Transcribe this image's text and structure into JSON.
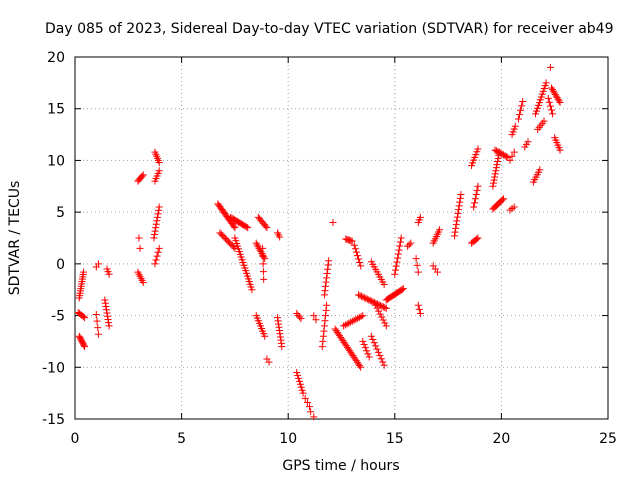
{
  "chart_data": {
    "type": "scatter",
    "title": "Day 085 of 2023, Sidereal Day-to-day VTEC variation (SDTVAR) for receiver ab49",
    "xlabel": "GPS time / hours",
    "ylabel": "SDTVAR / TECUs",
    "xlim": [
      0,
      25
    ],
    "ylim": [
      -15,
      20
    ],
    "xticks": [
      0,
      5,
      10,
      15,
      20,
      25
    ],
    "yticks": [
      -15,
      -10,
      -5,
      0,
      5,
      10,
      15,
      20
    ],
    "grid": true,
    "marker": "+",
    "color": "#ff0000",
    "segments": [
      {
        "x": [
          0.2,
          0.4
        ],
        "y": [
          -3.3,
          -0.8
        ],
        "n": 12
      },
      {
        "x": [
          0.15,
          0.45
        ],
        "y": [
          -4.7,
          -5.2
        ],
        "n": 6
      },
      {
        "x": [
          0.2,
          0.45
        ],
        "y": [
          -7.0,
          -8.0
        ],
        "n": 9
      },
      {
        "x": [
          1.0,
          1.1
        ],
        "y": [
          -0.3,
          0.0
        ],
        "n": 2
      },
      {
        "x": [
          1.0,
          1.1
        ],
        "y": [
          -4.9,
          -6.8
        ],
        "n": 4
      },
      {
        "x": [
          1.5,
          1.6
        ],
        "y": [
          -0.5,
          -1.0
        ],
        "n": 3
      },
      {
        "x": [
          1.4,
          1.6
        ],
        "y": [
          -3.5,
          -6.0
        ],
        "n": 9
      },
      {
        "x": [
          2.95,
          3.2
        ],
        "y": [
          8.0,
          8.6
        ],
        "n": 6
      },
      {
        "x": [
          3.0,
          3.05
        ],
        "y": [
          2.5,
          1.5
        ],
        "n": 2
      },
      {
        "x": [
          2.95,
          3.2
        ],
        "y": [
          -0.8,
          -1.8
        ],
        "n": 6
      },
      {
        "x": [
          3.75,
          3.95
        ],
        "y": [
          10.8,
          9.8
        ],
        "n": 6
      },
      {
        "x": [
          3.75,
          3.95
        ],
        "y": [
          8.0,
          9.0
        ],
        "n": 5
      },
      {
        "x": [
          3.7,
          3.95
        ],
        "y": [
          2.5,
          5.5
        ],
        "n": 10
      },
      {
        "x": [
          3.75,
          3.95
        ],
        "y": [
          0.0,
          1.5
        ],
        "n": 5
      },
      {
        "x": [
          6.7,
          7.5
        ],
        "y": [
          5.8,
          3.5
        ],
        "n": 18
      },
      {
        "x": [
          6.8,
          7.5
        ],
        "y": [
          3.0,
          1.5
        ],
        "n": 12
      },
      {
        "x": [
          7.3,
          8.1
        ],
        "y": [
          4.5,
          3.5
        ],
        "n": 14
      },
      {
        "x": [
          7.5,
          8.3
        ],
        "y": [
          2.5,
          -2.5
        ],
        "n": 20
      },
      {
        "x": [
          8.6,
          9.0
        ],
        "y": [
          4.5,
          3.5
        ],
        "n": 8
      },
      {
        "x": [
          8.5,
          8.9
        ],
        "y": [
          2.0,
          0.5
        ],
        "n": 10
      },
      {
        "x": [
          8.8,
          8.85
        ],
        "y": [
          1.5,
          -1.5
        ],
        "n": 5
      },
      {
        "x": [
          8.5,
          8.9
        ],
        "y": [
          -5.0,
          -7.0
        ],
        "n": 9
      },
      {
        "x": [
          9.0,
          9.1
        ],
        "y": [
          -9.2,
          -9.5
        ],
        "n": 2
      },
      {
        "x": [
          9.5,
          9.6
        ],
        "y": [
          3.0,
          2.6
        ],
        "n": 3
      },
      {
        "x": [
          9.5,
          9.7
        ],
        "y": [
          -5.2,
          -8.0
        ],
        "n": 10
      },
      {
        "x": [
          10.4,
          10.6
        ],
        "y": [
          -4.8,
          -5.3
        ],
        "n": 4
      },
      {
        "x": [
          10.4,
          10.7
        ],
        "y": [
          -10.5,
          -12.5
        ],
        "n": 8
      },
      {
        "x": [
          10.8,
          11.0
        ],
        "y": [
          -13.0,
          -13.8
        ],
        "n": 3
      },
      {
        "x": [
          11.05,
          11.2
        ],
        "y": [
          -14.3,
          -14.8
        ],
        "n": 2
      },
      {
        "x": [
          11.2,
          11.3
        ],
        "y": [
          -5.0,
          -5.4
        ],
        "n": 2
      },
      {
        "x": [
          11.6,
          11.8
        ],
        "y": [
          -8.0,
          -4.0
        ],
        "n": 9
      },
      {
        "x": [
          11.7,
          11.9
        ],
        "y": [
          -3.0,
          0.3
        ],
        "n": 9
      },
      {
        "x": [
          12.1,
          12.2
        ],
        "y": [
          4.0,
          4.0
        ],
        "n": 1
      },
      {
        "x": [
          12.2,
          13.4
        ],
        "y": [
          -6.3,
          -10.0
        ],
        "n": 24
      },
      {
        "x": [
          12.6,
          13.5
        ],
        "y": [
          -6.0,
          -5.0
        ],
        "n": 12
      },
      {
        "x": [
          12.7,
          13.0
        ],
        "y": [
          2.4,
          2.2
        ],
        "n": 6
      },
      {
        "x": [
          13.1,
          13.4
        ],
        "y": [
          1.8,
          -0.2
        ],
        "n": 7
      },
      {
        "x": [
          13.3,
          14.6
        ],
        "y": [
          -3.0,
          -4.3
        ],
        "n": 20
      },
      {
        "x": [
          13.5,
          13.8
        ],
        "y": [
          -7.5,
          -9.0
        ],
        "n": 6
      },
      {
        "x": [
          13.9,
          14.5
        ],
        "y": [
          0.2,
          -2.0
        ],
        "n": 10
      },
      {
        "x": [
          13.9,
          14.5
        ],
        "y": [
          -7.0,
          -9.8
        ],
        "n": 10
      },
      {
        "x": [
          14.1,
          14.6
        ],
        "y": [
          -4.0,
          -6.0
        ],
        "n": 8
      },
      {
        "x": [
          14.6,
          15.4
        ],
        "y": [
          -3.5,
          -2.4
        ],
        "n": 16
      },
      {
        "x": [
          15.0,
          15.3
        ],
        "y": [
          -1.0,
          2.5
        ],
        "n": 10
      },
      {
        "x": [
          15.6,
          15.75
        ],
        "y": [
          1.7,
          2.0
        ],
        "n": 3
      },
      {
        "x": [
          16.0,
          16.1
        ],
        "y": [
          0.5,
          -0.8
        ],
        "n": 3
      },
      {
        "x": [
          16.1,
          16.2
        ],
        "y": [
          4.0,
          4.5
        ],
        "n": 3
      },
      {
        "x": [
          16.1,
          16.2
        ],
        "y": [
          -4.0,
          -4.8
        ],
        "n": 3
      },
      {
        "x": [
          16.8,
          17.1
        ],
        "y": [
          2.0,
          3.3
        ],
        "n": 7
      },
      {
        "x": [
          16.8,
          17.0
        ],
        "y": [
          -0.2,
          -0.8
        ],
        "n": 3
      },
      {
        "x": [
          17.8,
          18.1
        ],
        "y": [
          2.7,
          6.7
        ],
        "n": 12
      },
      {
        "x": [
          18.6,
          18.9
        ],
        "y": [
          9.5,
          11.1
        ],
        "n": 7
      },
      {
        "x": [
          18.6,
          18.9
        ],
        "y": [
          2.0,
          2.5
        ],
        "n": 6
      },
      {
        "x": [
          18.7,
          18.9
        ],
        "y": [
          5.5,
          7.5
        ],
        "n": 6
      },
      {
        "x": [
          19.6,
          19.9
        ],
        "y": [
          7.5,
          10.8
        ],
        "n": 12
      },
      {
        "x": [
          19.7,
          20.3
        ],
        "y": [
          11.0,
          10.3
        ],
        "n": 10
      },
      {
        "x": [
          19.6,
          20.1
        ],
        "y": [
          5.3,
          6.3
        ],
        "n": 10
      },
      {
        "x": [
          20.4,
          20.6
        ],
        "y": [
          5.2,
          5.5
        ],
        "n": 3
      },
      {
        "x": [
          20.4,
          20.6
        ],
        "y": [
          10.0,
          10.8
        ],
        "n": 3
      },
      {
        "x": [
          20.5,
          20.65
        ],
        "y": [
          12.5,
          13.3
        ],
        "n": 4
      },
      {
        "x": [
          20.8,
          21.0
        ],
        "y": [
          14.0,
          15.7
        ],
        "n": 5
      },
      {
        "x": [
          21.1,
          21.25
        ],
        "y": [
          11.3,
          11.8
        ],
        "n": 3
      },
      {
        "x": [
          21.5,
          21.8
        ],
        "y": [
          7.9,
          9.1
        ],
        "n": 6
      },
      {
        "x": [
          21.6,
          22.1
        ],
        "y": [
          14.5,
          17.5
        ],
        "n": 12
      },
      {
        "x": [
          21.7,
          22.0
        ],
        "y": [
          13.0,
          13.8
        ],
        "n": 5
      },
      {
        "x": [
          22.2,
          22.4
        ],
        "y": [
          16.0,
          14.5
        ],
        "n": 5
      },
      {
        "x": [
          22.3,
          22.35
        ],
        "y": [
          19.0,
          19.1
        ],
        "n": 1
      },
      {
        "x": [
          22.35,
          22.75
        ],
        "y": [
          17.0,
          15.6
        ],
        "n": 10
      },
      {
        "x": [
          22.5,
          22.75
        ],
        "y": [
          12.2,
          11.0
        ],
        "n": 6
      }
    ]
  }
}
